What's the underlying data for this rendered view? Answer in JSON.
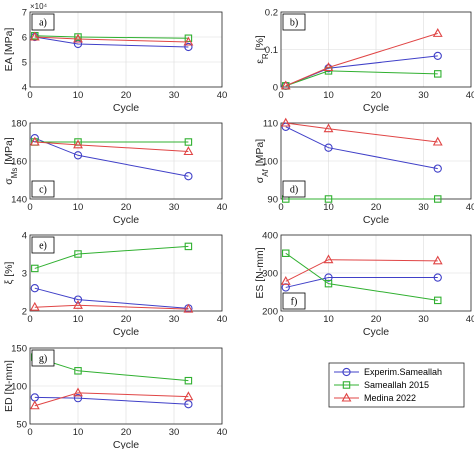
{
  "colors": {
    "exp": "#4040c8",
    "s2015": "#30b030",
    "m2022": "#e04545"
  },
  "legend": [
    {
      "key": "exp",
      "label": "Experim.Sameallah",
      "marker": "circle"
    },
    {
      "key": "s2015",
      "label": "Sameallah 2015",
      "marker": "square"
    },
    {
      "key": "m2022",
      "label": "Medina 2022",
      "marker": "triangle"
    }
  ],
  "chart_data": [
    {
      "id": "a",
      "tag": "a)",
      "type": "line",
      "xlabel": "Cycle",
      "ylabel": "EA [MPa]",
      "yexponent": "×10⁴",
      "xlim": [
        0,
        40
      ],
      "ylim": [
        4,
        7
      ],
      "xticks": [
        0,
        10,
        20,
        30,
        40
      ],
      "yticks": [
        4,
        5,
        6,
        7
      ],
      "grid": true,
      "x": [
        1,
        10,
        33
      ],
      "series": [
        {
          "key": "exp",
          "name": "Experim.Sameallah",
          "marker": "circle",
          "values": [
            6.0,
            5.72,
            5.6
          ]
        },
        {
          "key": "s2015",
          "name": "Sameallah 2015",
          "marker": "square",
          "values": [
            6.05,
            6.0,
            5.95
          ]
        },
        {
          "key": "m2022",
          "name": "Medina 2022",
          "marker": "triangle",
          "values": [
            6.0,
            5.92,
            5.8
          ]
        }
      ]
    },
    {
      "id": "b",
      "tag": "b)",
      "type": "line",
      "xlabel": "Cycle",
      "ylabel": "ε_R [%]",
      "xlim": [
        0,
        40
      ],
      "ylim": [
        0,
        0.2
      ],
      "xticks": [
        0,
        10,
        20,
        30,
        40
      ],
      "yticks": [
        0,
        0.1,
        0.2
      ],
      "grid": true,
      "x": [
        1,
        10,
        33
      ],
      "series": [
        {
          "key": "exp",
          "name": "Experim.Sameallah",
          "marker": "circle",
          "values": [
            0.003,
            0.05,
            0.083
          ]
        },
        {
          "key": "s2015",
          "name": "Sameallah 2015",
          "marker": "square",
          "values": [
            0.003,
            0.043,
            0.035
          ]
        },
        {
          "key": "m2022",
          "name": "Medina 2022",
          "marker": "triangle",
          "values": [
            0.003,
            0.052,
            0.143
          ]
        }
      ]
    },
    {
      "id": "c",
      "tag": "c)",
      "type": "line",
      "xlabel": "Cycle",
      "ylabel": "σ_Ms [MPa]",
      "xlim": [
        0,
        40
      ],
      "ylim": [
        140,
        180
      ],
      "xticks": [
        0,
        10,
        20,
        30,
        40
      ],
      "yticks": [
        140,
        160,
        180
      ],
      "grid": true,
      "x": [
        1,
        10,
        33
      ],
      "series": [
        {
          "key": "exp",
          "name": "Experim.Sameallah",
          "marker": "circle",
          "values": [
            172,
            163,
            152
          ]
        },
        {
          "key": "s2015",
          "name": "Sameallah 2015",
          "marker": "square",
          "values": [
            170,
            170,
            170
          ]
        },
        {
          "key": "m2022",
          "name": "Medina 2022",
          "marker": "triangle",
          "values": [
            170,
            168.5,
            165
          ]
        }
      ]
    },
    {
      "id": "d",
      "tag": "d)",
      "type": "line",
      "xlabel": "Cycle",
      "ylabel": "σ_Af [MPa]",
      "xlim": [
        0,
        40
      ],
      "ylim": [
        90,
        110
      ],
      "xticks": [
        0,
        10,
        20,
        30,
        40
      ],
      "yticks": [
        90,
        100,
        110
      ],
      "grid": true,
      "x": [
        1,
        10,
        33
      ],
      "series": [
        {
          "key": "exp",
          "name": "Experim.Sameallah",
          "marker": "circle",
          "values": [
            109,
            103.5,
            98
          ]
        },
        {
          "key": "s2015",
          "name": "Sameallah 2015",
          "marker": "square",
          "values": [
            90,
            90,
            90
          ]
        },
        {
          "key": "m2022",
          "name": "Medina 2022",
          "marker": "triangle",
          "values": [
            110,
            108.5,
            105
          ]
        }
      ]
    },
    {
      "id": "e",
      "tag": "e)",
      "type": "line",
      "xlabel": "Cycle",
      "ylabel": "ξ [%]",
      "xlim": [
        0,
        40
      ],
      "ylim": [
        2,
        4
      ],
      "xticks": [
        0,
        10,
        20,
        30,
        40
      ],
      "yticks": [
        2,
        3,
        4
      ],
      "grid": true,
      "x": [
        1,
        10,
        33
      ],
      "series": [
        {
          "key": "exp",
          "name": "Experim.Sameallah",
          "marker": "circle",
          "values": [
            2.6,
            2.3,
            2.07
          ]
        },
        {
          "key": "s2015",
          "name": "Sameallah 2015",
          "marker": "square",
          "values": [
            3.12,
            3.5,
            3.7
          ]
        },
        {
          "key": "m2022",
          "name": "Medina 2022",
          "marker": "triangle",
          "values": [
            2.1,
            2.15,
            2.05
          ]
        }
      ]
    },
    {
      "id": "f",
      "tag": "f)",
      "type": "line",
      "xlabel": "Cycle",
      "ylabel": "ES [N-mm]",
      "xlim": [
        0,
        40
      ],
      "ylim": [
        200,
        400
      ],
      "xticks": [
        0,
        10,
        20,
        30,
        40
      ],
      "yticks": [
        200,
        300,
        400
      ],
      "grid": true,
      "x": [
        1,
        10,
        33
      ],
      "series": [
        {
          "key": "exp",
          "name": "Experim.Sameallah",
          "marker": "circle",
          "values": [
            262,
            288,
            288
          ]
        },
        {
          "key": "s2015",
          "name": "Sameallah 2015",
          "marker": "square",
          "values": [
            352,
            272,
            228
          ]
        },
        {
          "key": "m2022",
          "name": "Medina 2022",
          "marker": "triangle",
          "values": [
            278,
            335,
            332
          ]
        }
      ]
    },
    {
      "id": "g",
      "tag": "g)",
      "type": "line",
      "xlabel": "Cycle",
      "ylabel": "ED [N-mm]",
      "xlim": [
        0,
        40
      ],
      "ylim": [
        50,
        150
      ],
      "xticks": [
        0,
        10,
        20,
        30,
        40
      ],
      "yticks": [
        50,
        100,
        150
      ],
      "grid": true,
      "x": [
        1,
        10,
        33
      ],
      "series": [
        {
          "key": "exp",
          "name": "Experim.Sameallah",
          "marker": "circle",
          "values": [
            85,
            84,
            76
          ]
        },
        {
          "key": "s2015",
          "name": "Sameallah 2015",
          "marker": "square",
          "values": [
            138,
            120,
            107
          ]
        },
        {
          "key": "m2022",
          "name": "Medina 2022",
          "marker": "triangle",
          "values": [
            74,
            91,
            86
          ]
        }
      ]
    }
  ]
}
